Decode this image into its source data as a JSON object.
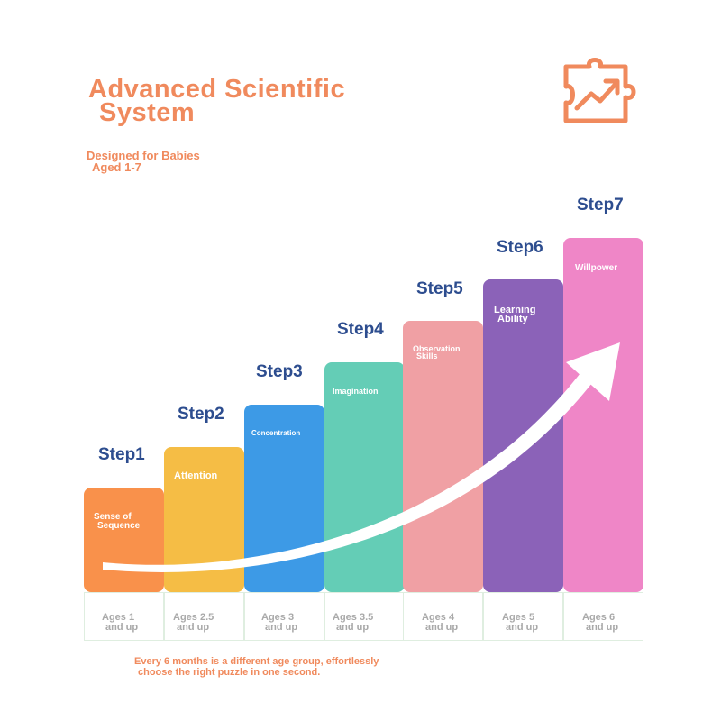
{
  "title": {
    "line1": "Advanced Scientific",
    "line2": "System"
  },
  "subtitle": {
    "line1": "Designed for Babies",
    "line2": "Aged 1-7"
  },
  "logo": {
    "icon": "puzzle-growth-icon",
    "color": "#f08a5d"
  },
  "steps": [
    {
      "label": "Step1",
      "skill1": "Sense of",
      "skill2": "Sequence",
      "age1": "Ages 1",
      "age2": "and up",
      "color": "#f9914b"
    },
    {
      "label": "Step2",
      "skill1": "Attention",
      "skill2": "",
      "age1": "Ages 2.5",
      "age2": "and up",
      "color": "#f5bd45"
    },
    {
      "label": "Step3",
      "skill1": "Concentration",
      "skill2": "",
      "age1": "Ages 3",
      "age2": "and up",
      "color": "#3d9ae6"
    },
    {
      "label": "Step4",
      "skill1": "Imagination",
      "skill2": "",
      "age1": "Ages 3.5",
      "age2": "and up",
      "color": "#64cdb6"
    },
    {
      "label": "Step5",
      "skill1": "Observation",
      "skill2": "Skills",
      "age1": "Ages 4",
      "age2": "and up",
      "color": "#f0a0a4"
    },
    {
      "label": "Step6",
      "skill1": "Learning",
      "skill2": "Ability",
      "age1": "Ages 5",
      "age2": "and up",
      "color": "#8b62b8"
    },
    {
      "label": "Step7",
      "skill1": "Willpower",
      "skill2": "",
      "age1": "Ages 6",
      "age2": "and up",
      "color": "#ef86c7"
    }
  ],
  "footer": {
    "line1": "Every 6 months is a different age group, effortlessly",
    "line2": "choose the right puzzle in one second."
  },
  "colors": {
    "accent": "#f08a5d",
    "step_text": "#2d4d8f",
    "age_text": "#a9a9a9"
  }
}
